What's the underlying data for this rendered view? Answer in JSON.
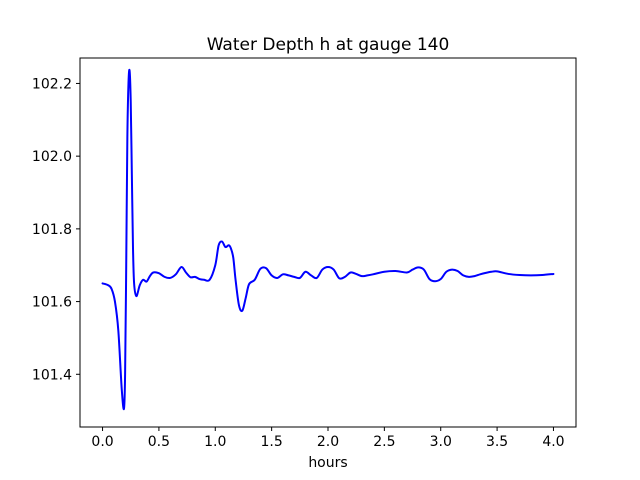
{
  "chart_data": {
    "type": "line",
    "title": "Water Depth h at gauge 140",
    "xlabel": "hours",
    "ylabel": "",
    "xlim": [
      -0.2,
      4.2
    ],
    "ylim": [
      101.255,
      102.27
    ],
    "xticks": [
      0.0,
      0.5,
      1.0,
      1.5,
      2.0,
      2.5,
      3.0,
      3.5,
      4.0
    ],
    "xtick_labels": [
      "0.0",
      "0.5",
      "1.0",
      "1.5",
      "2.0",
      "2.5",
      "3.0",
      "3.5",
      "4.0"
    ],
    "yticks": [
      101.4,
      101.6,
      101.8,
      102.0,
      102.2
    ],
    "ytick_labels": [
      "101.4",
      "101.6",
      "101.8",
      "102.0",
      "102.2"
    ],
    "grid": false,
    "series": [
      {
        "color": "#0000ff",
        "x": [
          0.0,
          0.05,
          0.08,
          0.11,
          0.14,
          0.17,
          0.19,
          0.2,
          0.21,
          0.22,
          0.23,
          0.24,
          0.25,
          0.26,
          0.27,
          0.28,
          0.3,
          0.33,
          0.36,
          0.39,
          0.42,
          0.45,
          0.5,
          0.55,
          0.6,
          0.65,
          0.7,
          0.74,
          0.78,
          0.82,
          0.86,
          0.9,
          0.95,
          1.0,
          1.03,
          1.06,
          1.09,
          1.12,
          1.14,
          1.16,
          1.18,
          1.21,
          1.24,
          1.27,
          1.3,
          1.35,
          1.4,
          1.45,
          1.5,
          1.55,
          1.6,
          1.65,
          1.7,
          1.75,
          1.8,
          1.85,
          1.9,
          1.95,
          2.0,
          2.05,
          2.1,
          2.15,
          2.2,
          2.25,
          2.3,
          2.35,
          2.4,
          2.5,
          2.6,
          2.7,
          2.75,
          2.8,
          2.85,
          2.9,
          2.95,
          3.0,
          3.05,
          3.1,
          3.15,
          3.2,
          3.25,
          3.3,
          3.35,
          3.4,
          3.45,
          3.5,
          3.6,
          3.7,
          3.8,
          3.9,
          4.0
        ],
        "y": [
          101.65,
          101.645,
          101.635,
          101.6,
          101.52,
          101.36,
          101.305,
          101.4,
          101.7,
          102.05,
          102.2,
          102.235,
          102.15,
          101.95,
          101.75,
          101.65,
          101.615,
          101.645,
          101.66,
          101.655,
          101.67,
          101.68,
          101.678,
          101.668,
          101.665,
          101.675,
          101.695,
          101.68,
          101.667,
          101.668,
          101.662,
          101.66,
          101.66,
          101.7,
          101.755,
          101.765,
          101.75,
          101.755,
          101.745,
          101.72,
          101.66,
          101.59,
          101.575,
          101.61,
          101.648,
          101.66,
          101.69,
          101.692,
          101.672,
          101.665,
          101.675,
          101.672,
          101.668,
          101.665,
          101.682,
          101.672,
          101.665,
          101.688,
          101.695,
          101.688,
          101.664,
          101.668,
          101.68,
          101.676,
          101.67,
          101.672,
          101.675,
          101.682,
          101.684,
          101.68,
          101.688,
          101.694,
          101.688,
          101.662,
          101.656,
          101.662,
          101.682,
          101.688,
          101.684,
          101.672,
          101.668,
          101.67,
          101.675,
          101.679,
          101.682,
          101.683,
          101.676,
          101.673,
          101.672,
          101.673,
          101.676
        ]
      }
    ]
  }
}
